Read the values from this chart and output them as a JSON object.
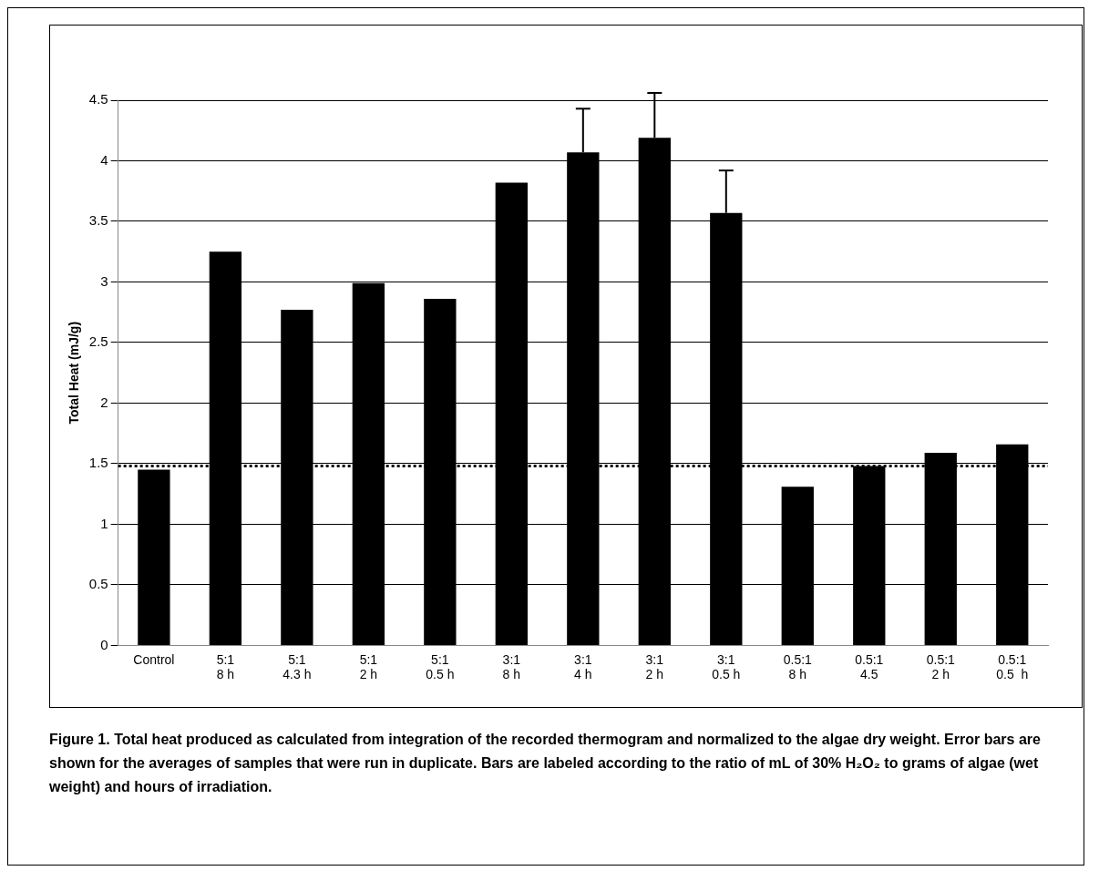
{
  "chart_data": {
    "type": "bar",
    "ylabel": "Total Heat (mJ/g)",
    "categories": [
      "Control",
      "5:1\n8 h",
      "5:1\n4.3 h",
      "5:1\n2 h",
      "5:1\n0.5 h",
      "3:1\n8 h",
      "3:1\n4 h",
      "3:1\n2 h",
      "3:1\n0.5 h",
      "0.5:1\n8 h",
      "0.5:1\n4.5",
      "0.5:1\n2 h",
      "0.5:1\n0.5  h"
    ],
    "values": [
      1.45,
      3.25,
      2.77,
      2.99,
      2.86,
      3.82,
      4.07,
      4.19,
      3.57,
      1.31,
      1.48,
      1.59,
      1.66
    ],
    "errors": [
      null,
      null,
      null,
      null,
      null,
      null,
      [
        4.07,
        4.43
      ],
      [
        4.19,
        4.56
      ],
      [
        3.57,
        3.92
      ],
      null,
      null,
      null,
      null
    ],
    "color": "#000000",
    "ylim": [
      0,
      4.5
    ],
    "yticks": [
      0,
      0.5,
      1,
      1.5,
      2,
      2.5,
      3,
      3.5,
      4,
      4.5
    ],
    "grid": "y",
    "ref_lines": [
      {
        "axis": "y",
        "value": 1.48,
        "color": "#000000",
        "line_style": "dotted"
      }
    ],
    "annotations": [
      "Figure 1. Total heat produced as calculated from integration of the recorded thermogram and normalized to the algae dry weight. Error bars are shown for the averages of samples that were run in duplicate. Bars are labeled according to the ratio of mL of 30% H₂O₂ to grams of algae (wet weight) and hours of irradiation."
    ]
  }
}
